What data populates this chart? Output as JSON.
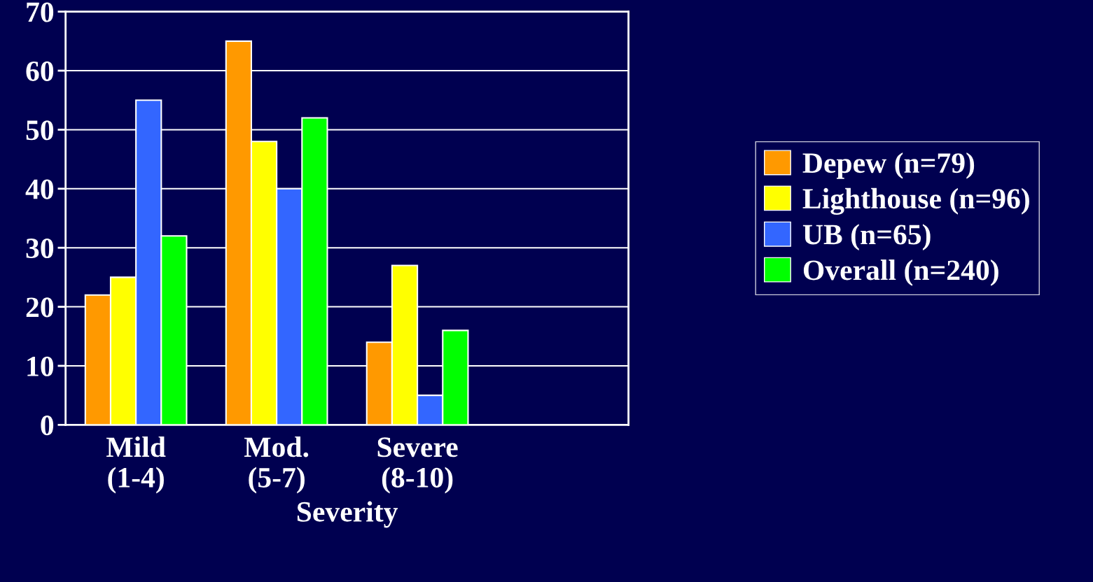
{
  "chart_data": {
    "type": "bar",
    "xlabel": "Severity",
    "categories": [
      "Mild\n(1-4)",
      "Mod.\n(5-7)",
      "Severe\n(8-10)",
      null
    ],
    "series": [
      {
        "name": "Depew (n=79)",
        "color": "#ff9900",
        "values": [
          22,
          65,
          14,
          null
        ]
      },
      {
        "name": "Lighthouse (n=96)",
        "color": "#ffff00",
        "values": [
          25,
          48,
          27,
          null
        ]
      },
      {
        "name": "UB (n=65)",
        "color": "#3366ff",
        "values": [
          55,
          40,
          5,
          null
        ]
      },
      {
        "name": "Overall (n=240)",
        "color": "#00ff00",
        "values": [
          32,
          52,
          16,
          null
        ]
      }
    ],
    "ylim": [
      0,
      70
    ],
    "yticks": [
      0,
      10,
      20,
      30,
      40,
      50,
      60,
      70
    ],
    "grid": "y",
    "legend": "right"
  }
}
